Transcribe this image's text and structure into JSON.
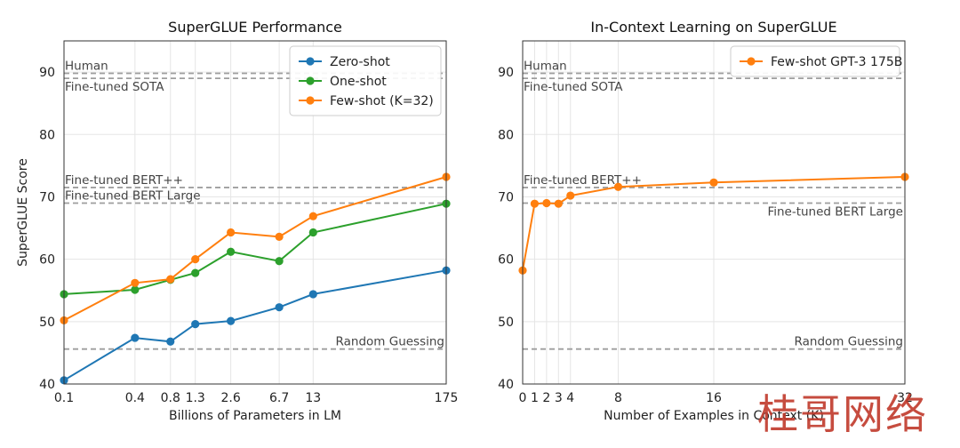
{
  "watermark": "桂哥网络",
  "colors": {
    "zero": "#1f77b4",
    "one": "#2ca02c",
    "few": "#ff7f0e",
    "ref": "#9e9e9e",
    "axis": "#222222",
    "grid": "#e5e5e5"
  },
  "chart_data": [
    {
      "type": "line",
      "title": "SuperGLUE Performance",
      "xlabel": "Billions of Parameters in LM",
      "ylabel": "SuperGLUE Score",
      "x_scale": "log",
      "xlim": [
        0.1,
        175
      ],
      "ylim": [
        40,
        95
      ],
      "xticks": [
        0.1,
        0.4,
        0.8,
        1.3,
        2.6,
        6.7,
        13,
        175
      ],
      "xtick_labels": [
        "0.1",
        "0.4",
        "0.8",
        "1.3",
        "2.6",
        "6.7",
        "13",
        "175"
      ],
      "yticks": [
        40,
        50,
        60,
        70,
        80,
        90
      ],
      "ytick_labels": [
        "40",
        "50",
        "60",
        "70",
        "80",
        "90"
      ],
      "grid": true,
      "legend_position": "top-right",
      "x": [
        0.1,
        0.4,
        0.8,
        1.3,
        2.6,
        6.7,
        13,
        175
      ],
      "series": [
        {
          "name": "Zero-shot",
          "color_key": "zero",
          "values": [
            40.6,
            47.4,
            46.8,
            49.6,
            50.1,
            52.3,
            54.4,
            58.2
          ]
        },
        {
          "name": "One-shot",
          "color_key": "one",
          "values": [
            54.4,
            55.1,
            56.7,
            57.8,
            61.2,
            59.7,
            64.3,
            68.9
          ]
        },
        {
          "name": "Few-shot (K=32)",
          "color_key": "few",
          "values": [
            50.2,
            56.2,
            56.8,
            60.0,
            64.3,
            63.6,
            66.9,
            73.2
          ]
        }
      ],
      "reference_lines": [
        {
          "label": "Human",
          "value": 89.8,
          "label_align": "left",
          "label_pos": "above"
        },
        {
          "label": "Fine-tuned SOTA",
          "value": 89.0,
          "label_align": "left",
          "label_pos": "below"
        },
        {
          "label": "Fine-tuned BERT++",
          "value": 71.5,
          "label_align": "left",
          "label_pos": "above"
        },
        {
          "label": "Fine-tuned BERT Large",
          "value": 69.0,
          "label_align": "left",
          "label_pos": "above"
        },
        {
          "label": "Random Guessing",
          "value": 45.6,
          "label_align": "right",
          "label_pos": "above"
        }
      ]
    },
    {
      "type": "line",
      "title": "In-Context Learning on SuperGLUE",
      "xlabel": "Number of Examples in Context (K)",
      "ylabel": "",
      "x_scale": "linear",
      "xlim": [
        0,
        32
      ],
      "ylim": [
        40,
        95
      ],
      "xticks": [
        0,
        1,
        2,
        3,
        4,
        8,
        16,
        32
      ],
      "xtick_labels": [
        "0",
        "1",
        "2",
        "3",
        "4",
        "8",
        "16",
        "32"
      ],
      "yticks": [
        40,
        50,
        60,
        70,
        80,
        90
      ],
      "ytick_labels": [
        "40",
        "50",
        "60",
        "70",
        "80",
        "90"
      ],
      "grid": true,
      "legend_position": "top-right",
      "x": [
        0,
        1,
        2,
        3,
        4,
        8,
        16,
        32
      ],
      "series": [
        {
          "name": "Few-shot GPT-3 175B",
          "color_key": "few",
          "values": [
            58.2,
            68.9,
            69.0,
            68.9,
            70.2,
            71.6,
            72.3,
            73.2
          ]
        }
      ],
      "reference_lines": [
        {
          "label": "Human",
          "value": 89.8,
          "label_align": "left",
          "label_pos": "above"
        },
        {
          "label": "Fine-tuned SOTA",
          "value": 89.0,
          "label_align": "left",
          "label_pos": "below"
        },
        {
          "label": "Fine-tuned BERT++",
          "value": 71.5,
          "label_align": "left",
          "label_pos": "above"
        },
        {
          "label": "Fine-tuned BERT Large",
          "value": 69.0,
          "label_align": "right",
          "label_pos": "below"
        },
        {
          "label": "Random Guessing",
          "value": 45.6,
          "label_align": "right",
          "label_pos": "above"
        }
      ]
    }
  ]
}
